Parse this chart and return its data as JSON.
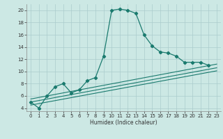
{
  "xlabel": "Humidex (Indice chaleur)",
  "background_color": "#cce8e4",
  "grid_color": "#aacccc",
  "line_color": "#1a7a6e",
  "xlim": [
    -0.5,
    23.5
  ],
  "ylim": [
    3.5,
    21
  ],
  "xticks": [
    0,
    1,
    2,
    3,
    4,
    5,
    6,
    7,
    8,
    9,
    10,
    11,
    12,
    13,
    14,
    15,
    16,
    17,
    18,
    19,
    20,
    21,
    22,
    23
  ],
  "yticks": [
    4,
    6,
    8,
    10,
    12,
    14,
    16,
    18,
    20
  ],
  "main_x": [
    0,
    1,
    2,
    3,
    4,
    5,
    6,
    7,
    8,
    9,
    10,
    11,
    12,
    13,
    14,
    15,
    16,
    17,
    18,
    19,
    20,
    21,
    22
  ],
  "main_y": [
    5.0,
    4.0,
    6.0,
    7.5,
    8.0,
    6.5,
    7.0,
    8.5,
    9.0,
    12.5,
    20.0,
    20.2,
    20.0,
    19.5,
    16.0,
    14.2,
    13.2,
    13.0,
    12.5,
    11.5,
    11.5,
    11.5,
    11.0
  ],
  "flat_lines": [
    {
      "x0": 0,
      "y0": 5.5,
      "x1": 23,
      "y1": 11.2
    },
    {
      "x0": 0,
      "y0": 5.0,
      "x1": 23,
      "y1": 10.6
    },
    {
      "x0": 0,
      "y0": 4.5,
      "x1": 23,
      "y1": 10.1
    }
  ]
}
